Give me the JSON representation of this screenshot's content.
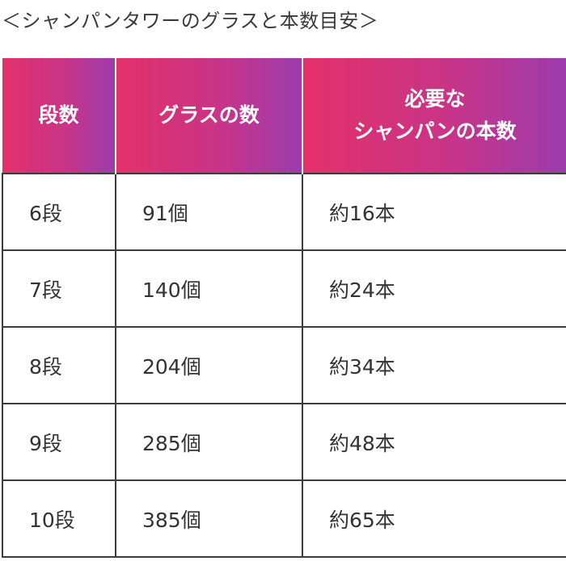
{
  "caption": "＜シャンパンタワーのグラスと本数目安＞",
  "table": {
    "headers": {
      "tiers": "段数",
      "glasses": "グラスの数",
      "bottles_line1": "必要な",
      "bottles_line2": "シャンパンの本数"
    },
    "rows": [
      {
        "tiers": "6段",
        "glasses": "91個",
        "bottles": "約16本"
      },
      {
        "tiers": "7段",
        "glasses": "140個",
        "bottles": "約24本"
      },
      {
        "tiers": "8段",
        "glasses": "204個",
        "bottles": "約34本"
      },
      {
        "tiers": "9段",
        "glasses": "285個",
        "bottles": "約48本"
      },
      {
        "tiers": "10段",
        "glasses": "385個",
        "bottles": "約65本"
      }
    ]
  },
  "colors": {
    "header_gradient_start": "#e3306a",
    "header_gradient_end": "#9c3cae",
    "border": "#3c3c3c"
  }
}
